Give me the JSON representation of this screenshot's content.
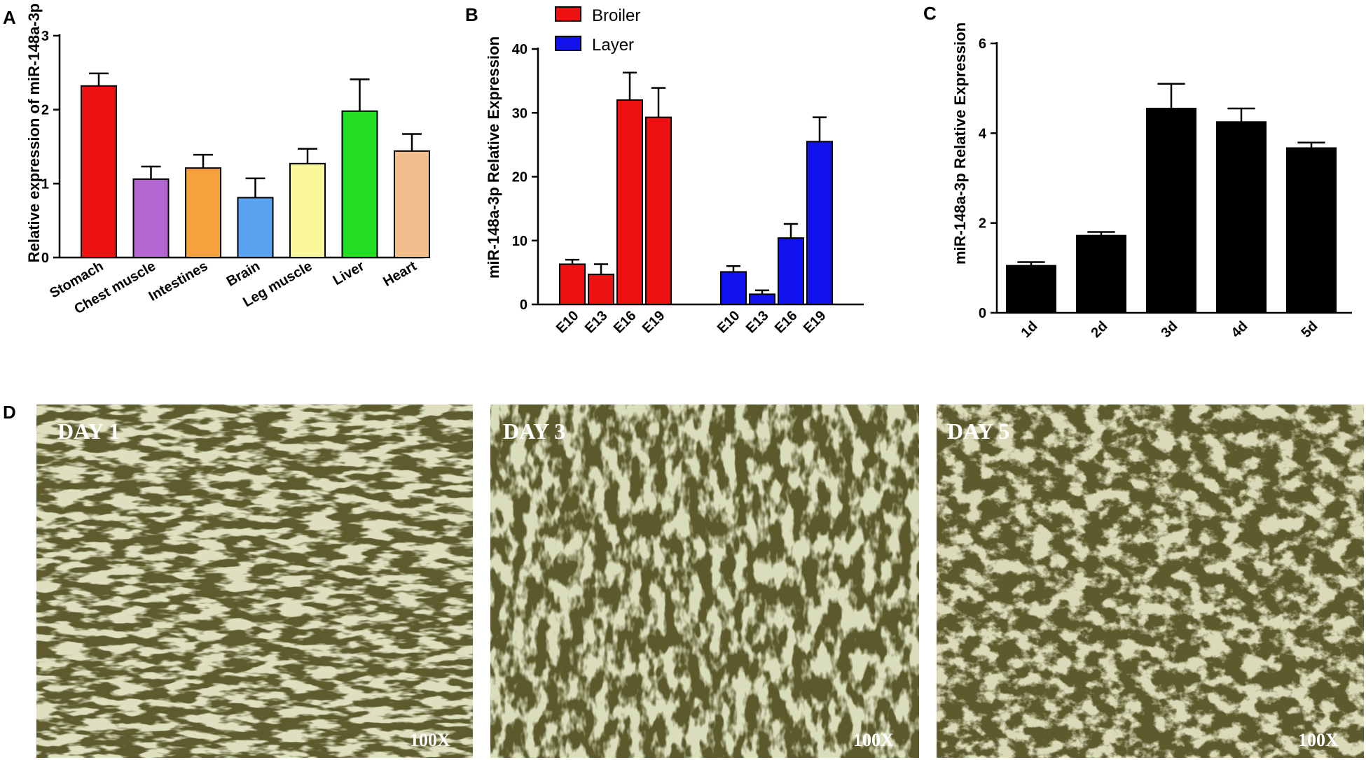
{
  "chart_data": [
    {
      "panel": "A",
      "type": "bar",
      "ylabel": "Relative expression of miR-148a-3p",
      "ylim": [
        0,
        3
      ],
      "yticks": [
        0,
        1,
        2,
        3
      ],
      "categories": [
        "Stomach",
        "Chest muscle",
        "Intestines",
        "Brain",
        "Leg muscle",
        "Liver",
        "Heart"
      ],
      "values": [
        2.32,
        1.06,
        1.21,
        0.81,
        1.27,
        1.98,
        1.44
      ],
      "errors": [
        0.17,
        0.17,
        0.18,
        0.26,
        0.2,
        0.43,
        0.23
      ],
      "colors": [
        "#ee1111",
        "#b366d1",
        "#f7a13e",
        "#5aa3f0",
        "#fbf79b",
        "#22dd22",
        "#f3be8d"
      ]
    },
    {
      "panel": "B",
      "type": "bar",
      "ylabel": "miR-148a-3p Relative Expression",
      "ylim": [
        0,
        40
      ],
      "yticks": [
        0,
        10,
        20,
        30,
        40
      ],
      "categories": [
        "E10",
        "E13",
        "E16",
        "E19"
      ],
      "series": [
        {
          "name": "Broiler",
          "color": "#ee1111",
          "values": [
            6.3,
            4.7,
            32.0,
            29.3
          ],
          "errors": [
            0.7,
            1.6,
            4.3,
            4.6
          ]
        },
        {
          "name": "Layer",
          "color": "#1111ee",
          "values": [
            5.1,
            1.6,
            10.4,
            25.5
          ],
          "errors": [
            0.9,
            0.6,
            2.2,
            3.8
          ]
        }
      ],
      "legend": "top-left"
    },
    {
      "panel": "C",
      "type": "bar",
      "ylabel": "miR-148a-3p Relative Expression",
      "ylim": [
        0,
        6
      ],
      "yticks": [
        0,
        2,
        4,
        6
      ],
      "categories": [
        "1d",
        "2d",
        "3d",
        "4d",
        "5d"
      ],
      "values": [
        1.05,
        1.72,
        4.55,
        4.25,
        3.67
      ],
      "errors": [
        0.08,
        0.08,
        0.55,
        0.3,
        0.12
      ],
      "colors": [
        "#000000",
        "#000000",
        "#000000",
        "#000000",
        "#000000"
      ]
    }
  ],
  "panel_d": {
    "letter": "D",
    "images": [
      {
        "label": "DAY 1",
        "magnification": "100X"
      },
      {
        "label": "DAY 3",
        "magnification": "100X"
      },
      {
        "label": "DAY 5",
        "magnification": "100X"
      }
    ],
    "colors": {
      "base": "#5e5b2e",
      "cell": "#b8bb84"
    }
  }
}
